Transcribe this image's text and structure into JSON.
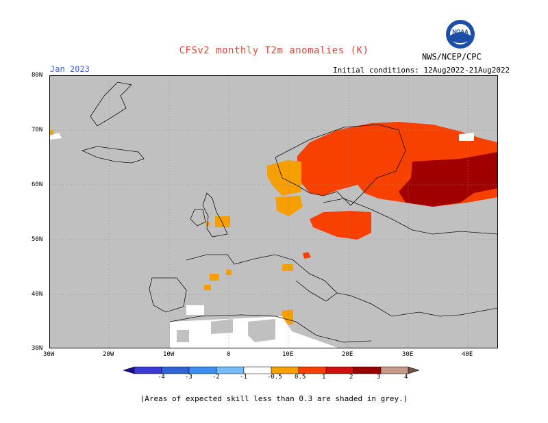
{
  "header": {
    "title": "CFSv2 monthly T2m anomalies (K)",
    "period": "Jan 2023",
    "initial_conditions": "Initial conditions: 12Aug2022-21Aug2022",
    "agency": "NWS/NCEP/CPC",
    "logo_text": "NOAA"
  },
  "map": {
    "region": "Europe",
    "lat_range": [
      30,
      80
    ],
    "lon_range": [
      -30,
      45
    ],
    "y_ticks": [
      "80N",
      "70N",
      "60N",
      "50N",
      "40N",
      "30N"
    ],
    "x_ticks": [
      "30W",
      "20W",
      "10W",
      "0",
      "10E",
      "20E",
      "30E",
      "40E"
    ],
    "grid": "dotted"
  },
  "colorbar": {
    "labels": [
      "-4",
      "-3",
      "-2",
      "-1",
      "-0.5",
      "0.5",
      "1",
      "2",
      "3",
      "4"
    ],
    "colors": [
      "#1a0a8c",
      "#3a3ad0",
      "#2f64d6",
      "#3c8ef0",
      "#78baf8",
      "#ffffff",
      "#f5a000",
      "#f84000",
      "#d01010",
      "#980000",
      "#c49a8a",
      "#705040"
    ]
  },
  "footer": {
    "note": "(Areas of expected skill less than 0.3 are shaded in grey.)"
  }
}
